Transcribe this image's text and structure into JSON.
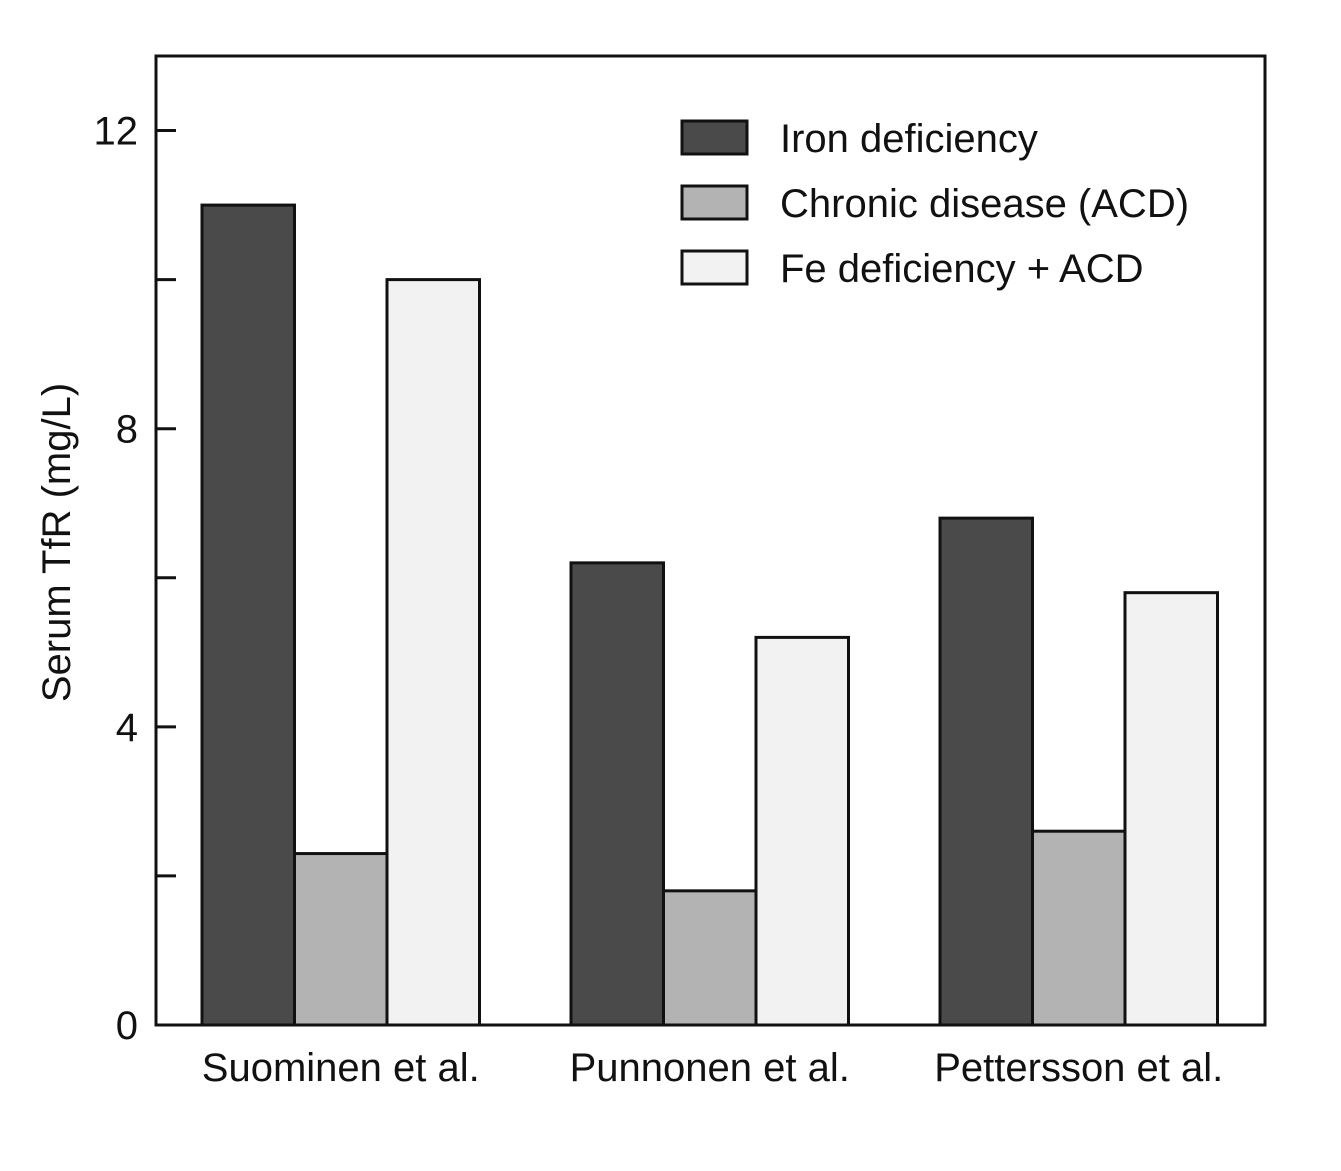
{
  "chart_data": {
    "type": "bar",
    "title": "",
    "xlabel": "",
    "ylabel": "Serum TfR (mg/L)",
    "ylim": [
      0,
      13
    ],
    "yticks": [
      0,
      4,
      8,
      12
    ],
    "yminor_ticks": [
      2,
      6,
      10
    ],
    "categories": [
      "Suominen et al.",
      "Punnonen et al.",
      "Pettersson et al."
    ],
    "series": [
      {
        "name": "Iron deficiency",
        "values": [
          11.0,
          6.2,
          6.8
        ],
        "color": "#4a4a4a"
      },
      {
        "name": "Chronic disease (ACD)",
        "values": [
          2.3,
          1.8,
          2.6
        ],
        "color": "#b3b3b3"
      },
      {
        "name": "Fe deficiency + ACD",
        "values": [
          10.0,
          5.2,
          5.8
        ],
        "color": "#f2f2f2"
      }
    ],
    "legend_position": "top-right",
    "grid": false
  }
}
